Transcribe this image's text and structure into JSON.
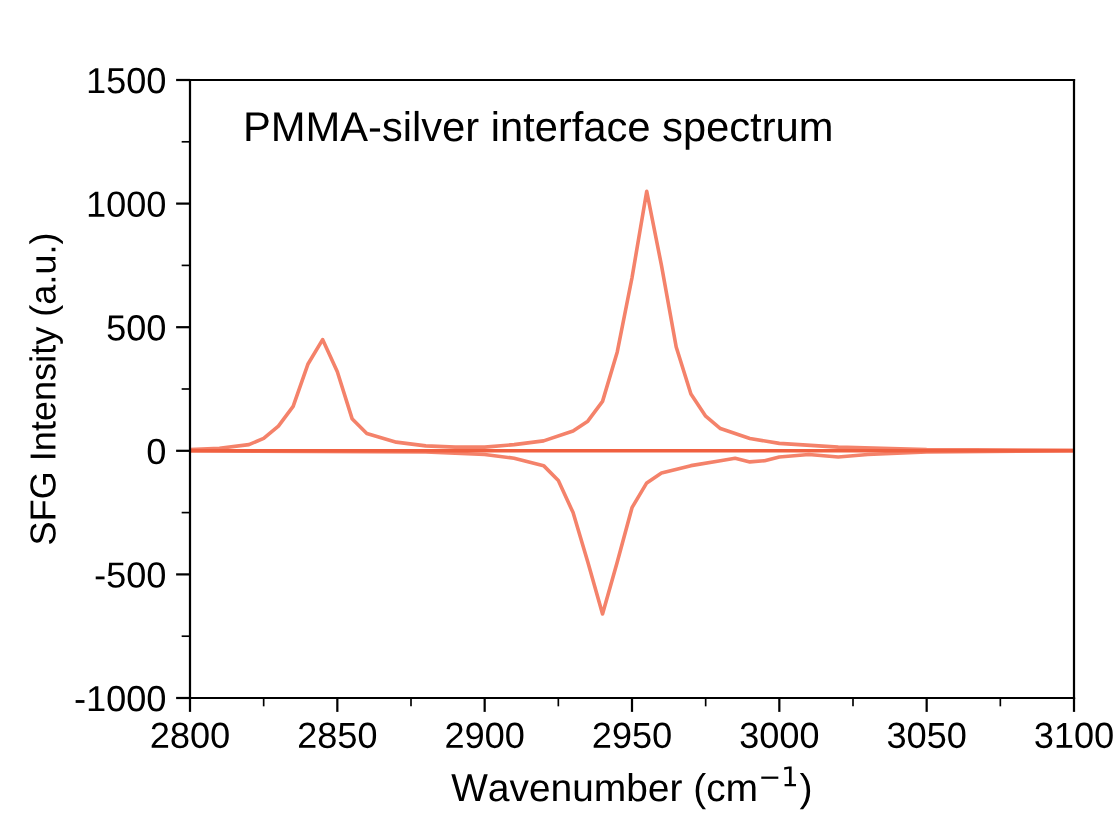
{
  "chart_data": {
    "type": "line",
    "title": "PMMA-silver interface spectrum",
    "xlabel": "Wavenumber (cm$^{−1}$)",
    "ylabel": "SFG Intensity (a.u.)",
    "series": [
      {
        "color": "#f4826a",
        "x": [
          2800,
          2810,
          2820,
          2825,
          2830,
          2835,
          2840,
          2845,
          2850,
          2855,
          2860,
          2870,
          2880,
          2890,
          2900,
          2910,
          2920,
          2930,
          2935,
          2940,
          2945,
          2950,
          2955,
          2960,
          2965,
          2970,
          2975,
          2980,
          2990,
          3000,
          3020,
          3050,
          3100
        ],
        "values": [
          5,
          10,
          25,
          50,
          100,
          180,
          350,
          450,
          320,
          130,
          70,
          35,
          20,
          15,
          15,
          25,
          40,
          80,
          120,
          200,
          400,
          700,
          1050,
          750,
          420,
          230,
          140,
          90,
          50,
          30,
          15,
          5,
          2
        ]
      },
      {
        "color": "#f4826a",
        "x": [
          2800,
          2880,
          2900,
          2910,
          2920,
          2925,
          2930,
          2935,
          2940,
          2945,
          2950,
          2955,
          2960,
          2970,
          2980,
          2985,
          2990,
          2995,
          3000,
          3010,
          3020,
          3030,
          3050,
          3100
        ],
        "values": [
          0,
          -5,
          -15,
          -30,
          -60,
          -120,
          -250,
          -450,
          -660,
          -450,
          -230,
          -130,
          -90,
          -60,
          -40,
          -30,
          -45,
          -40,
          -25,
          -15,
          -25,
          -15,
          -5,
          0
        ]
      },
      {
        "color": "#f06040",
        "x": [
          2800,
          3100
        ],
        "values": [
          0,
          0
        ]
      }
    ],
    "xlim": [
      2800,
      3100
    ],
    "ylim": [
      -1000,
      1500
    ],
    "xticks": [
      2800,
      {
        "value": 2825,
        "label": null
      },
      2850,
      {
        "value": 2875,
        "label": null
      },
      2900,
      {
        "value": 2925,
        "label": null
      },
      2950,
      {
        "value": 2975,
        "label": null
      },
      3000,
      {
        "value": 3025,
        "label": null
      },
      3050,
      {
        "value": 3075,
        "label": null
      },
      3100
    ],
    "yticks": [
      -1000,
      {
        "value": -750,
        "label": null
      },
      -500,
      {
        "value": -250,
        "label": null
      },
      0,
      {
        "value": 250,
        "label": null
      },
      500,
      {
        "value": 750,
        "label": null
      },
      1000,
      {
        "value": 1250,
        "label": null
      },
      1500
    ],
    "grid": false,
    "legend": false,
    "marker": "none",
    "line_style": "solid"
  }
}
